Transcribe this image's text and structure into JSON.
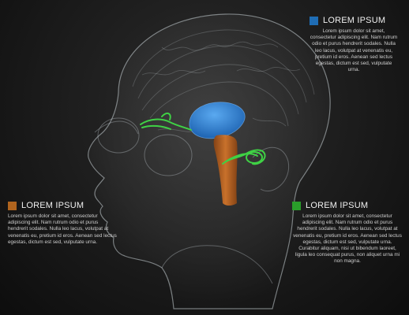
{
  "callouts": {
    "blue": {
      "title": "LOREM IPSUM",
      "body": "Lorem ipsum dolor sit amet, consectetur adipiscing elit. Nam rutrum odio et purus hendrerit sodales. Nulla leo lacus, volutpat at venenatis eu, pretium id eros. Aenean sed lectus egestas, dictum est sed, vulputate urna.",
      "color": "#1f6db5"
    },
    "orange": {
      "title": "LOREM IPSUM",
      "body": "Lorem ipsum dolor sit amet, consectetur adipiscing elit. Nam rutrum odio et purus hendrerit sodales. Nulla leo lacus, volutpat at venenatis eu, pretium id eros. Aenean sed lectus egestas, dictum est sed, vulputate urna.",
      "color": "#b0641e"
    },
    "green": {
      "title": "LOREM IPSUM",
      "body": "Lorem ipsum dolor sit amet, consectetur adipiscing elit. Nam rutrum odio et purus hendrerit sodales. Nulla leo lacus, volutpat at venenatis eu, pretium id eros. Aenean sed lectus egestas, dictum est sed, vulputate urna. Curabitur aliquam, nisi ut bibendum laoreet, ligula leo consequat purus, non aliquet urna mi non magna.",
      "color": "#2a9d2a"
    }
  },
  "colors": {
    "background": "#1b1b1b",
    "head_outline": "#bfc7cc",
    "hippocampus": "#2a7fd4",
    "brainstem": "#c5661f",
    "nerves": "#35c23a"
  }
}
